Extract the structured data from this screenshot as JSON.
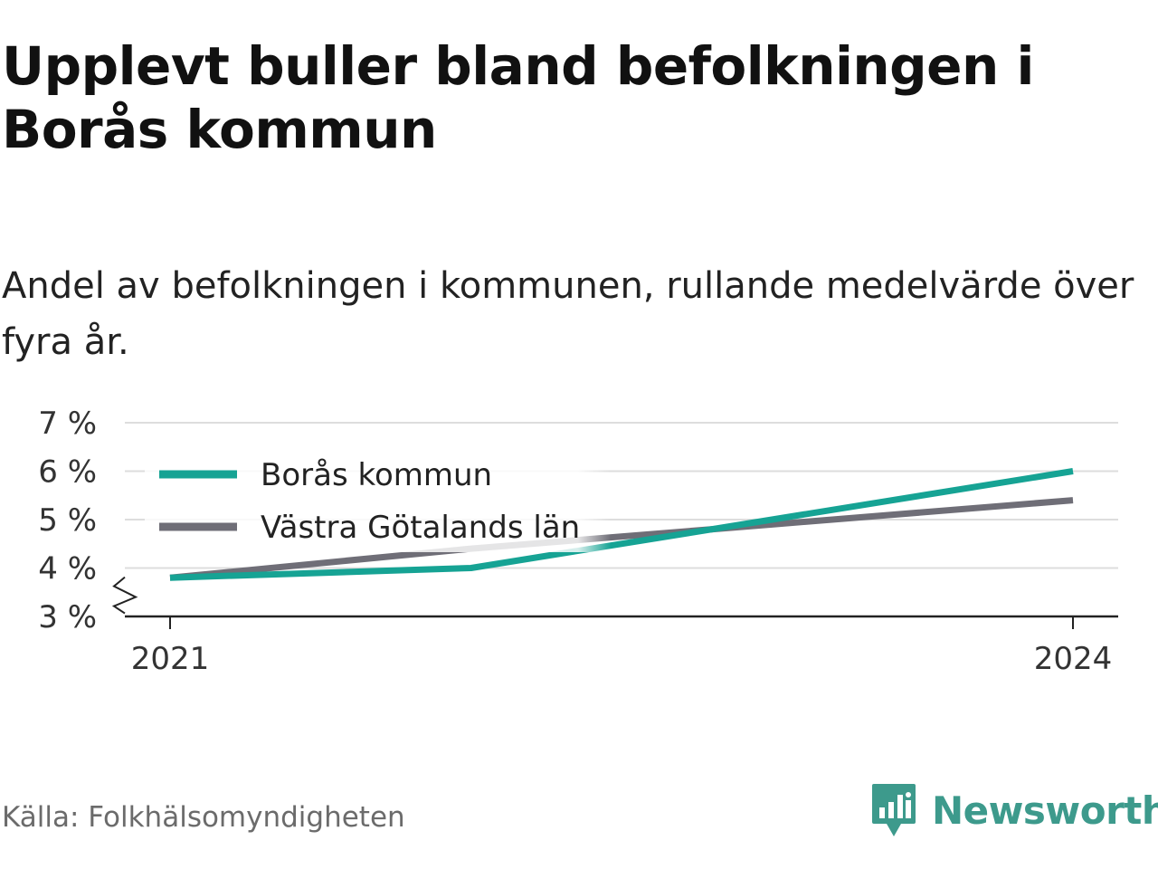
{
  "title": "Upplevt buller bland befolkningen i Borås kommun",
  "subtitle": "Andel av befolkningen i kommunen, rullande medelvärde över fyra år.",
  "source": "Källa: Folkhälsomyndigheten",
  "brand": {
    "name": "Newsworthy",
    "icon": "newsworthy-logo-icon",
    "color": "#3d9a8c"
  },
  "chart_data": {
    "type": "line",
    "x": [
      2021,
      2022,
      2023,
      2024
    ],
    "x_tick_labels": [
      "2021",
      "2024"
    ],
    "y_tick_labels": [
      "3 %",
      "4 %",
      "5 %",
      "6 %",
      "7 %"
    ],
    "ylim": [
      3,
      7
    ],
    "y_axis_break": true,
    "grid": true,
    "legend_placement": "top-left",
    "series": [
      {
        "name": "Borås kommun",
        "color": "#16a394",
        "values": [
          3.8,
          4.0,
          5.0,
          6.0
        ]
      },
      {
        "name": "Västra Götalands län",
        "color": "#6f6e77",
        "values": [
          3.8,
          4.4,
          4.9,
          5.4
        ]
      }
    ]
  }
}
